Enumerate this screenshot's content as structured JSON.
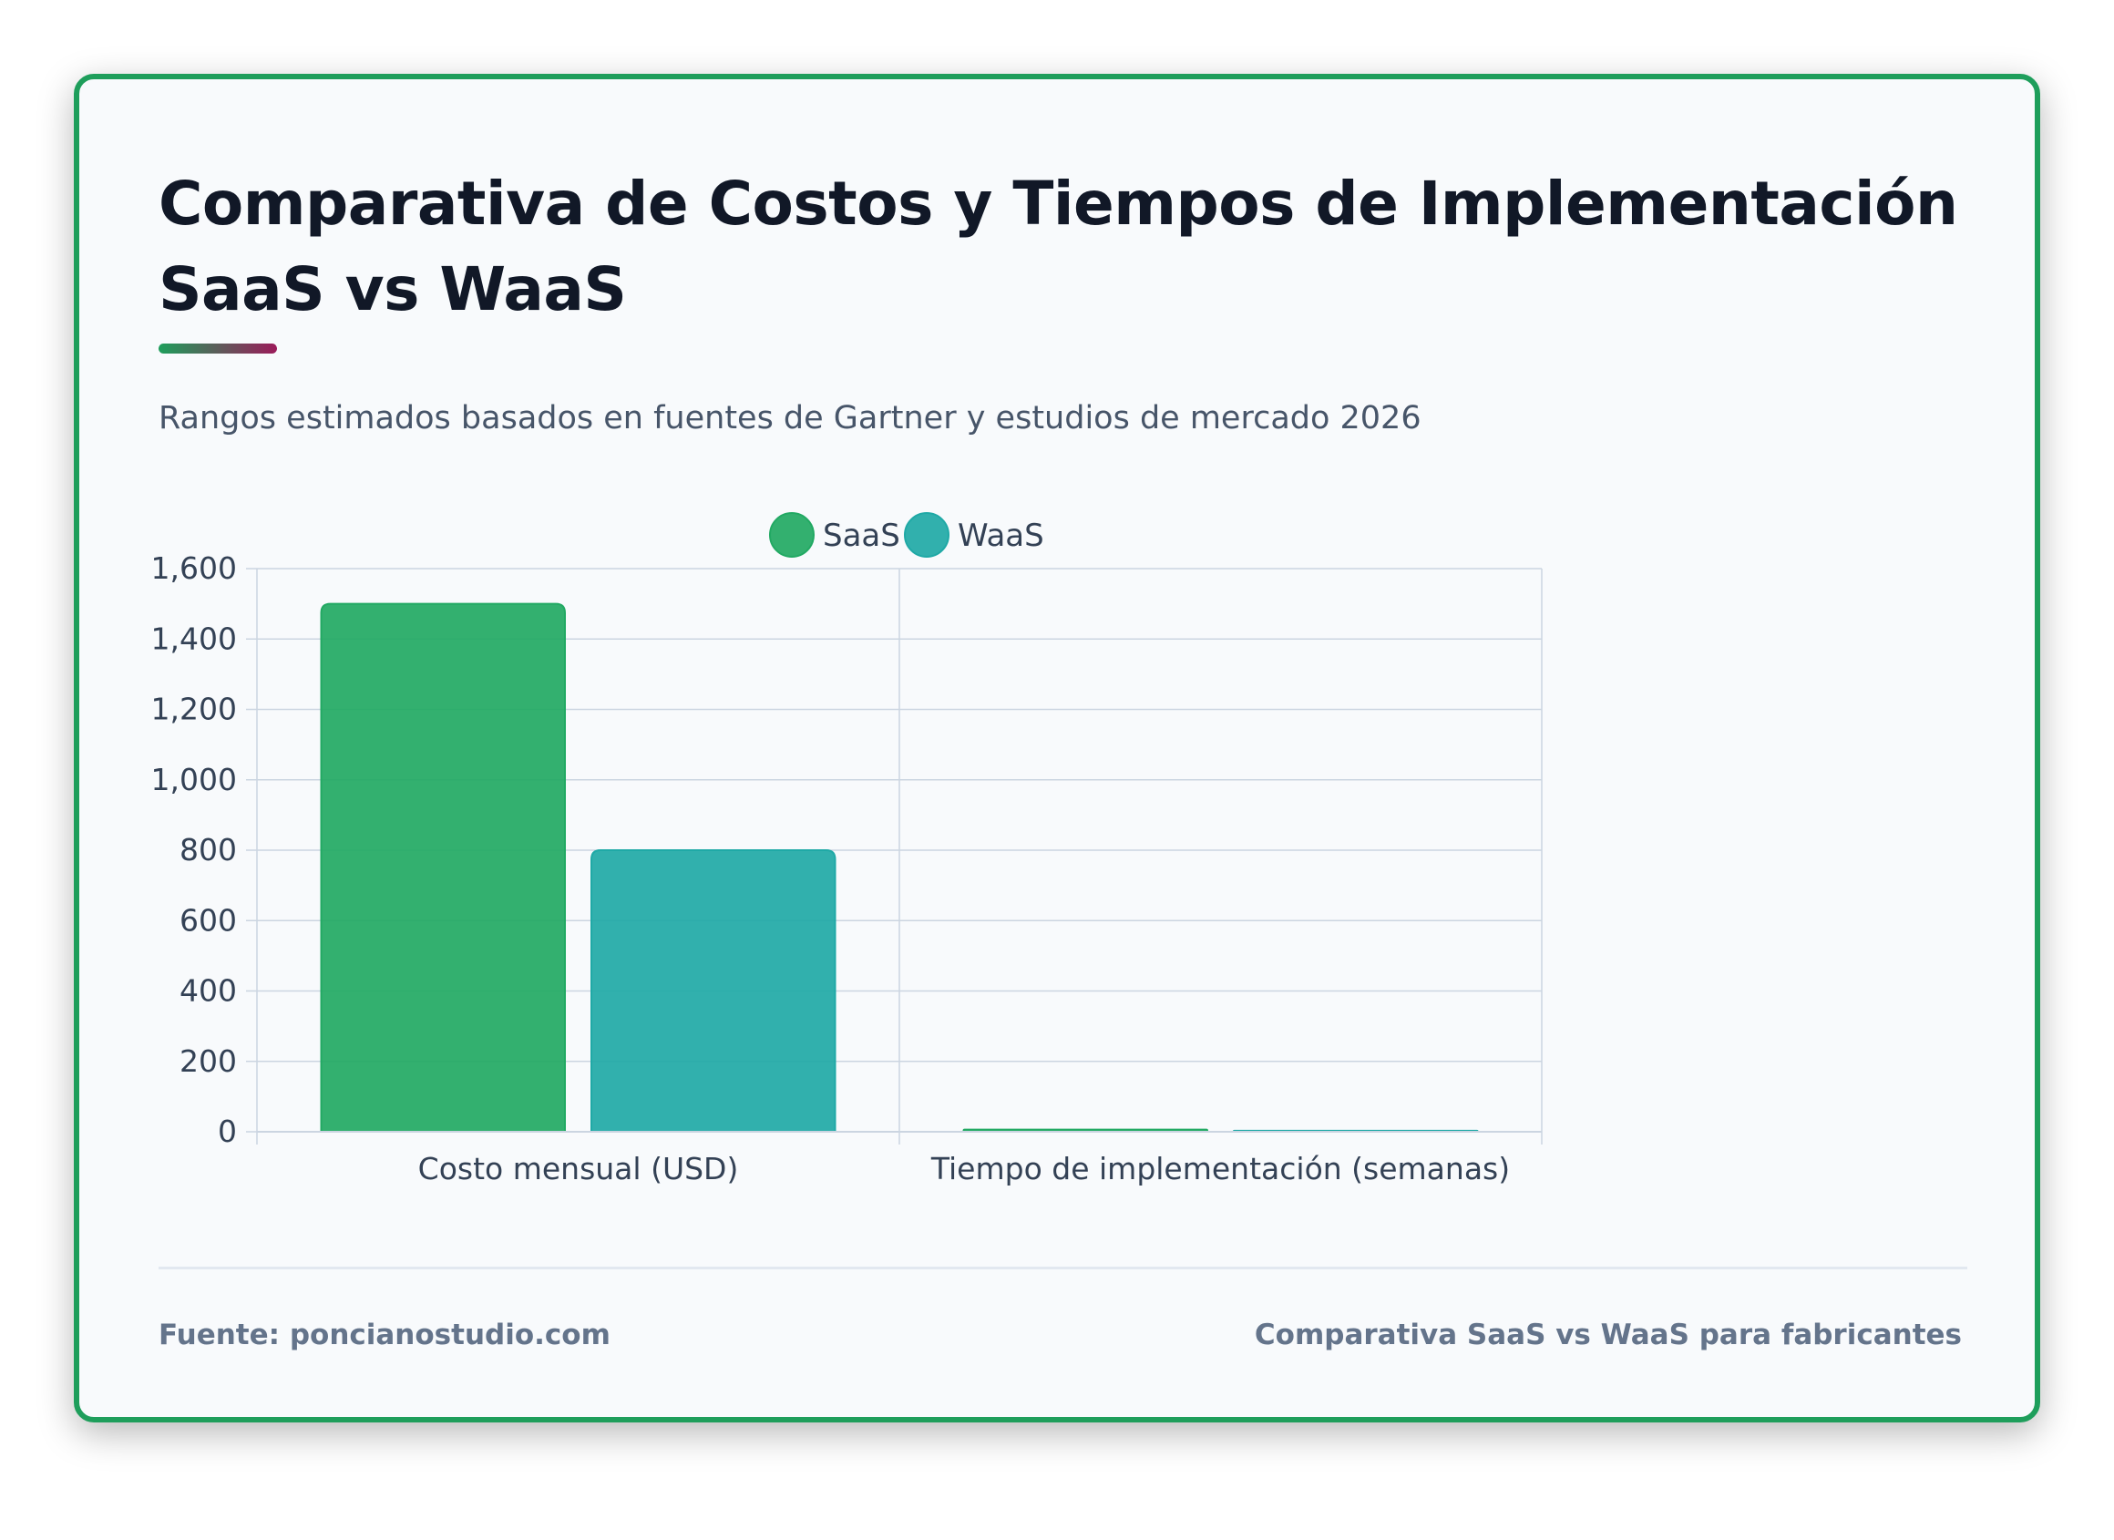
{
  "header": {
    "title": "Comparativa de Costos y Tiempos de Implementación SaaS vs WaaS",
    "subtitle": "Rangos estimados basados en fuentes de Gartner y estudios de mercado 2026"
  },
  "footer": {
    "source": "Fuente: poncianostudio.com",
    "caption": "Comparativa SaaS vs WaaS para fabricantes"
  },
  "colors": {
    "card_border": "#1e9e5b",
    "saas": "#22a963",
    "waas": "#1fa9a6",
    "grid": "#cbd5e1",
    "text": "#334155"
  },
  "chart_data": {
    "type": "bar",
    "title": "Comparativa de Costos y Tiempos de Implementación SaaS vs WaaS",
    "categories": [
      "Costo mensual (USD)",
      "Tiempo de implementación (semanas)"
    ],
    "series": [
      {
        "name": "SaaS",
        "values": [
          1500,
          6
        ],
        "color": "#22a963"
      },
      {
        "name": "WaaS",
        "values": [
          800,
          3
        ],
        "color": "#1fa9a6"
      }
    ],
    "ylim": [
      0,
      1600
    ],
    "yticks": [
      0,
      200,
      400,
      600,
      800,
      1000,
      1200,
      1400,
      1600
    ],
    "ytick_labels": [
      "0",
      "200",
      "400",
      "600",
      "800",
      "1,000",
      "1,200",
      "1,400",
      "1,600"
    ],
    "grid": true,
    "legend_position": "top"
  }
}
